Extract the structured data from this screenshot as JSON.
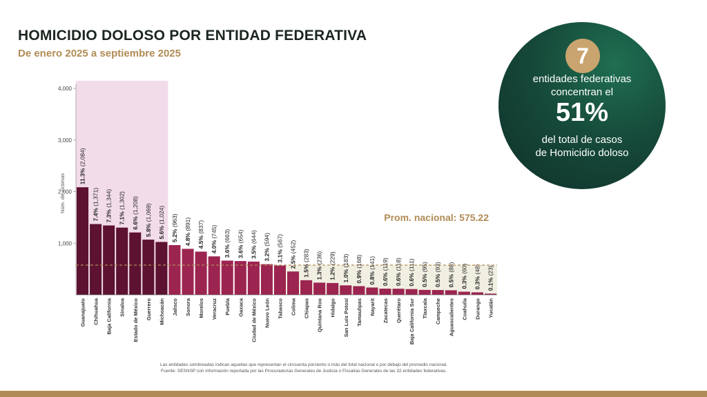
{
  "header": {
    "title": "HOMICIDIO DOLOSO POR ENTIDAD FEDERATIVA",
    "subtitle": "De enero 2025 a septiembre 2025"
  },
  "callout": {
    "number": "7",
    "line1": "entidades federativas",
    "line2": "concentran el",
    "percent": "51%",
    "line3": "del total de casos",
    "line4": "de Homicidio doloso"
  },
  "chart_data": {
    "type": "bar",
    "ylabel": "Núm. de víctimas",
    "ylim": [
      0,
      4000
    ],
    "yticks": [
      1000,
      2000,
      3000,
      4000
    ],
    "yticklabels": [
      "1,000",
      "2,000",
      "3,000",
      "4,000"
    ],
    "categories": [
      "Guanajuato",
      "Chihuahua",
      "Baja California",
      "Sinaloa",
      "Estado de México",
      "Guerrero",
      "Michoacán",
      "Jalisco",
      "Sonora",
      "Morelos",
      "Veracruz",
      "Puebla",
      "Oaxaca",
      "Ciudad de México",
      "Nuevo León",
      "Tabasco",
      "Colima",
      "Chiapas",
      "Quintana Roo",
      "Hidalgo",
      "San Luis Potosí",
      "Tamaulipas",
      "Nayarit",
      "Zacatecas",
      "Querétaro",
      "Baja California Sur",
      "Tlaxcala",
      "Campeche",
      "Aguascalientes",
      "Coahuila",
      "Durango",
      "Yucatán"
    ],
    "values": [
      2084,
      1371,
      1344,
      1302,
      1208,
      1069,
      1024,
      963,
      891,
      837,
      745,
      663,
      654,
      644,
      594,
      567,
      452,
      283,
      236,
      229,
      183,
      168,
      141,
      119,
      118,
      111,
      95,
      93,
      88,
      60,
      48,
      23
    ],
    "pct_labels": [
      "11.3%",
      "7.4%",
      "7.3%",
      "7.1%",
      "6.6%",
      "5.8%",
      "5.6%",
      "5.2%",
      "4.8%",
      "4.5%",
      "4.0%",
      "3.6%",
      "3.6%",
      "3.5%",
      "3.2%",
      "3.1%",
      "2.5%",
      "1.5%",
      "1.3%",
      "1.2%",
      "1.0%",
      "0.9%",
      "0.8%",
      "0.6%",
      "0.6%",
      "0.6%",
      "0.5%",
      "0.5%",
      "0.5%",
      "0.3%",
      "0.3%",
      "0.1%"
    ],
    "count_labels": [
      "(2,084)",
      "(1,371)",
      "(1,344)",
      "(1,302)",
      "(1,208)",
      "(1,069)",
      "(1,024)",
      "(963)",
      "(891)",
      "(837)",
      "(745)",
      "(663)",
      "(654)",
      "(644)",
      "(594)",
      "(567)",
      "(452)",
      "(283)",
      "(236)",
      "(229)",
      "(183)",
      "(168)",
      "(141)",
      "(119)",
      "(118)",
      "(111)",
      "(95)",
      "(93)",
      "(88)",
      "(60)",
      "(48)",
      "(23)"
    ],
    "highlighted_count": 7,
    "average": 575.22,
    "average_label": "Prom. nacional: 575.22",
    "colors": {
      "highlight_bar": "#5c1230",
      "bar": "#9c2450",
      "highlight_band": "#f2dcea",
      "below_avg_band": "#f1efe2",
      "average_line": "#b18b55",
      "average_text": "#b18b55"
    }
  },
  "footnotes": {
    "note1": "Las entidades sombreadas indican aquellas que representan el cincuenta porciento o más del total nacional o por debajo del promedio nacional.",
    "note2": "Fuente: SESNSP con información reportada por las Procuradurías Generales de Justicia o Fiscalías Generales de las 32 entidades federativas."
  }
}
